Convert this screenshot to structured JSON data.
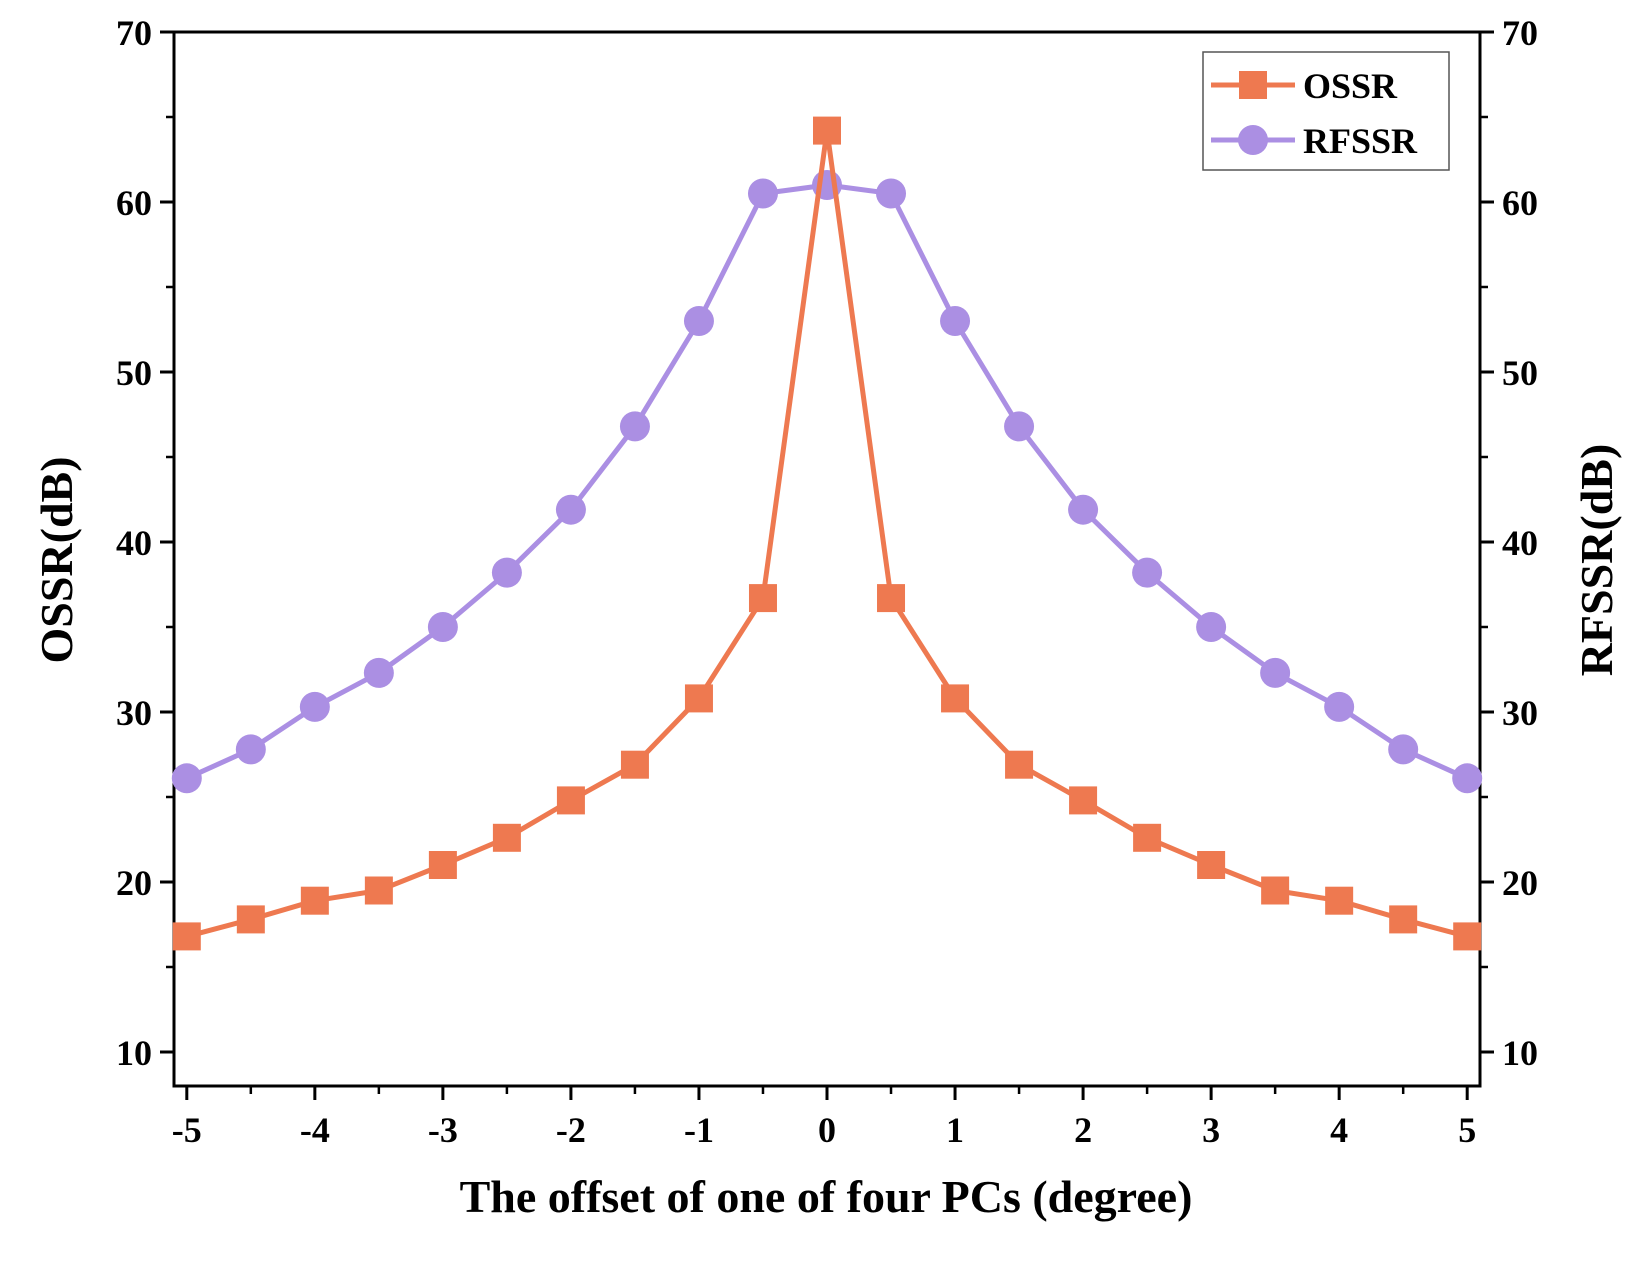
{
  "chart_data": {
    "type": "line",
    "title": "",
    "xlabel": "The offset of one of four PCs (degree)",
    "ylabel_left": "OSSR(dB)",
    "ylabel_right": "RFSSR(dB)",
    "xlim": [
      -5.1,
      5.1
    ],
    "ylim": [
      8,
      70
    ],
    "x_ticks": [
      -5,
      -4,
      -3,
      -2,
      -1,
      0,
      1,
      2,
      3,
      4,
      5
    ],
    "x_tick_labels": [
      "-5",
      "-4",
      "-3",
      "-2",
      "-1",
      "0",
      "1",
      "2",
      "3",
      "4",
      "5"
    ],
    "y_ticks": [
      10,
      20,
      30,
      40,
      50,
      60,
      70
    ],
    "y_tick_labels_left": [
      "10",
      "20",
      "30",
      "40",
      "50",
      "60",
      "70"
    ],
    "y_tick_labels_right": [
      "10",
      "20",
      "30",
      "40",
      "50",
      "60",
      "70"
    ],
    "x": [
      -5,
      -4.5,
      -4,
      -3.5,
      -3,
      -2.5,
      -2,
      -1.5,
      -1,
      -0.5,
      0,
      0.5,
      1,
      1.5,
      2,
      2.5,
      3,
      3.5,
      4,
      4.5,
      5
    ],
    "series": [
      {
        "name": "OSSR",
        "marker": "square",
        "color": "#ee7950",
        "axis": "left",
        "values": [
          16.8,
          17.8,
          18.9,
          19.5,
          21.0,
          22.6,
          24.8,
          26.9,
          30.8,
          36.7,
          64.2,
          36.7,
          30.8,
          26.9,
          24.8,
          22.6,
          21.0,
          19.5,
          18.9,
          17.8,
          16.8
        ]
      },
      {
        "name": "RFSSR",
        "marker": "circle",
        "color": "#ab8fe3",
        "axis": "right",
        "values": [
          26.1,
          27.8,
          30.3,
          32.3,
          35.0,
          38.2,
          41.9,
          46.8,
          53.0,
          60.5,
          61.0,
          60.5,
          53.0,
          46.8,
          41.9,
          38.2,
          35.0,
          32.3,
          30.3,
          27.8,
          26.1
        ]
      }
    ],
    "legend_position": "top-right"
  }
}
